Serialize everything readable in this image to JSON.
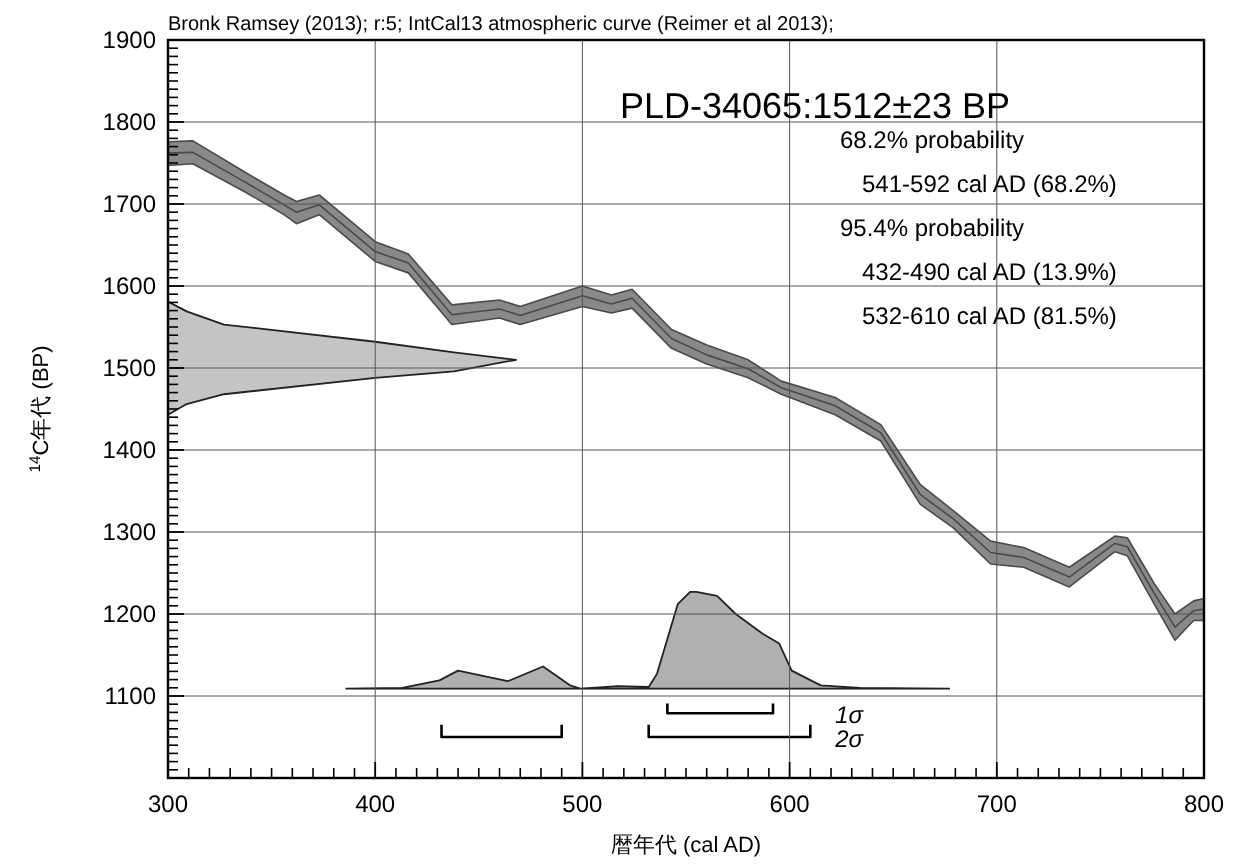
{
  "chart_data": {
    "type": "line",
    "title": "PLD-34065:1512±23 BP",
    "xlabel": "暦年代 (cal AD)",
    "ylabel": "$^{14}$C年代 (BP)",
    "annotations": [
      "Bronk Ramsey (2013); r:5; IntCal13 atmospheric curve (Reimer et al 2013);",
      "68.2% probability",
      "541-592 cal AD (68.2%)",
      "95.4% probability",
      "432-490 cal AD (13.9%)",
      "532-610 cal AD (81.5%)",
      "1σ",
      "2σ"
    ],
    "xlim": [
      300,
      800
    ],
    "ylim": [
      1000,
      1900
    ],
    "xticks": [
      300,
      400,
      500,
      600,
      700,
      800
    ],
    "yticks": [
      1100,
      1200,
      1300,
      1400,
      1500,
      1600,
      1700,
      1800,
      1900
    ],
    "grid": true,
    "marker": "none",
    "series": [
      {
        "color": "#4a4a4a",
        "x": [
          300,
          312,
          337,
          356,
          362,
          373,
          400,
          416,
          437,
          460,
          470,
          500,
          514,
          524,
          543,
          560,
          580,
          596,
          622,
          644,
          663,
          679,
          697,
          713,
          735,
          757,
          763,
          776,
          786,
          795,
          800
        ],
        "values": [
          1762,
          1763,
          1727,
          1699,
          1690,
          1699,
          1642,
          1628,
          1565,
          1572,
          1564,
          1588,
          1578,
          1585,
          1536,
          1516,
          1499,
          1476,
          1454,
          1421,
          1346,
          1316,
          1275,
          1269,
          1245,
          1286,
          1282,
          1225,
          1184,
          1204,
          1206
        ],
        "lower": [
          1747,
          1749,
          1715,
          1687,
          1676,
          1687,
          1630,
          1616,
          1553,
          1561,
          1553,
          1575,
          1567,
          1573,
          1524,
          1505,
          1488,
          1468,
          1443,
          1411,
          1334,
          1305,
          1261,
          1257,
          1233,
          1276,
          1271,
          1212,
          1168,
          1192,
          1192
        ],
        "upper": [
          1776,
          1777,
          1739,
          1711,
          1703,
          1711,
          1654,
          1639,
          1577,
          1583,
          1575,
          1600,
          1589,
          1596,
          1547,
          1528,
          1510,
          1484,
          1464,
          1431,
          1358,
          1326,
          1289,
          1281,
          1257,
          1295,
          1293,
          1237,
          1200,
          1216,
          1219
        ]
      },
      {
        "type": "area",
        "color": "#c4c4c4",
        "x": [
          300,
          309,
          327,
          400,
          438,
          468,
          438,
          400,
          327,
          309,
          300
        ],
        "values": [
          1443,
          1456,
          1468,
          1488,
          1496,
          1510,
          1519,
          1532,
          1553,
          1569,
          1581
        ]
      },
      {
        "type": "area",
        "color": "#b0b0b0",
        "x": [
          386,
          413,
          431,
          440,
          464,
          481,
          494,
          499,
          517,
          532,
          536,
          546,
          552,
          555,
          565,
          574,
          587,
          595,
          601,
          615,
          634,
          677
        ],
        "values": [
          1109,
          1110,
          1119,
          1131,
          1118,
          1136,
          1113,
          1109,
          1112,
          1111,
          1127,
          1212,
          1227,
          1227,
          1222,
          1200,
          1176,
          1164,
          1131,
          1113,
          1110,
          1109
        ]
      },
      {
        "type": "line",
        "color": "#000000",
        "x": [
          541,
          541,
          592,
          592
        ],
        "values": [
          1091,
          1079,
          1079,
          1091
        ]
      },
      {
        "type": "line",
        "color": "#000000",
        "x": [
          432,
          432,
          490,
          490
        ],
        "values": [
          1065,
          1050,
          1050,
          1065
        ]
      },
      {
        "type": "line",
        "color": "#000000",
        "x": [
          532,
          532,
          610,
          610
        ],
        "values": [
          1065,
          1050,
          1050,
          1065
        ]
      }
    ]
  }
}
